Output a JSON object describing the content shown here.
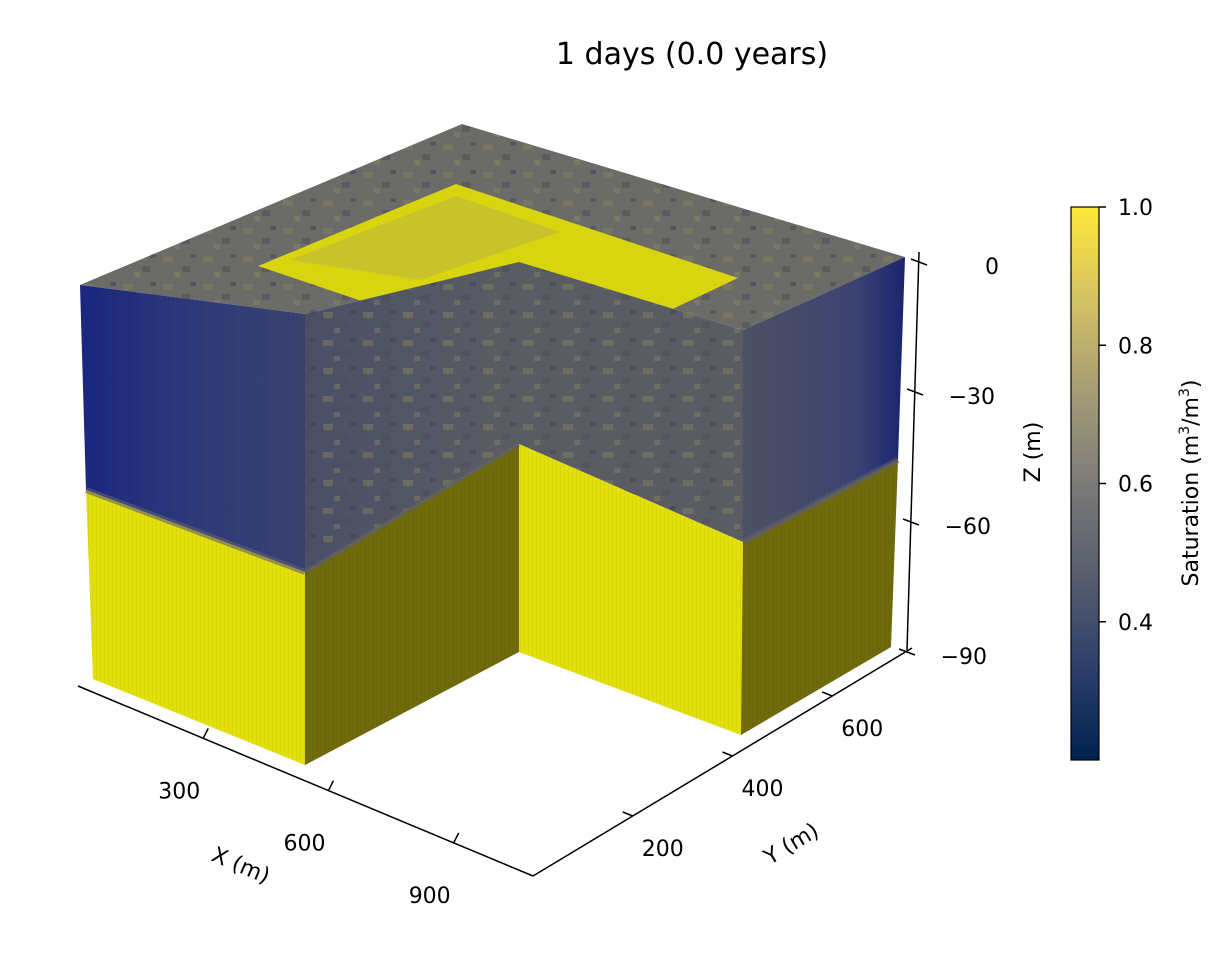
{
  "title": "1 days (0.0 years)",
  "chart_data": {
    "type": "3d-volume",
    "title": "1 days (0.0 years)",
    "variable": "Saturation",
    "axes": {
      "x": {
        "label": "X (m)",
        "ticks": [
          300,
          600,
          900
        ]
      },
      "y": {
        "label": "Y (m)",
        "ticks": [
          200,
          400,
          600
        ]
      },
      "z": {
        "label": "Z (m)",
        "ticks": [
          0,
          -30,
          -60,
          -90
        ],
        "tick_labels": [
          "0",
          "−30",
          "−60",
          "−90"
        ]
      }
    },
    "colorbar": {
      "label_main": "Saturation (m",
      "label_sup1": "3",
      "label_mid": "/m",
      "label_sup2": "3",
      "label_end": ")",
      "ticks": [
        0.4,
        0.6,
        0.8,
        1.0
      ],
      "tick_labels": [
        "0.4",
        "0.6",
        "0.8",
        "1.0"
      ],
      "range": [
        0.2,
        1.0
      ],
      "colormap": "cividis",
      "colors": [
        "#00224e",
        "#3b496c",
        "#575d6d",
        "#7c7b78",
        "#a69d75",
        "#d3c164",
        "#fee838"
      ]
    },
    "layers": [
      {
        "name": "unsaturated",
        "saturation": 0.45
      },
      {
        "name": "saturated",
        "saturation": 1.0
      }
    ],
    "colors": {
      "saturated": "#e2df0a",
      "saturated_shaded": "#6f6a0a",
      "unsat_top": "#6b6b68",
      "unsat_side": "#3d4478",
      "unsat_dry": "#0a1a7a",
      "yellow_patch": "#d8d40e"
    }
  }
}
